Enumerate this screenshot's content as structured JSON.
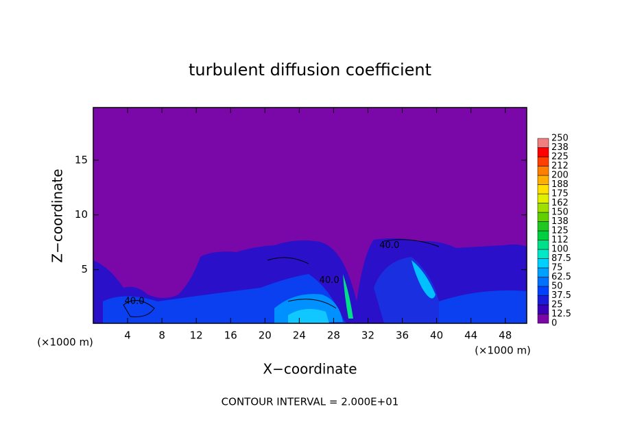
{
  "chart_data": {
    "type": "contour",
    "title": "turbulent diffusion coefficient",
    "x_label": "X−coordinate",
    "y_label": "Z−coordinate",
    "x_unit": "(×1000 m)",
    "y_unit": "(×1000 m)",
    "xlim": [
      0,
      50.5
    ],
    "ylim": [
      0.1,
      19.8
    ],
    "xticks": [
      4,
      8,
      12,
      16,
      20,
      24,
      28,
      32,
      36,
      40,
      44,
      48
    ],
    "yticks": [
      5,
      10,
      15
    ],
    "colorbar": {
      "levels": [
        0,
        12.5,
        25,
        37.5,
        50,
        62.5,
        75,
        87.5,
        100,
        {
          "value": 112.5,
          "label": "112"
        },
        125,
        {
          "value": 137.5,
          "label": "138"
        },
        150,
        {
          "value": 162.5,
          "label": "162"
        },
        175,
        {
          "value": 187.5,
          "label": "188"
        },
        200,
        {
          "value": 212.5,
          "label": "212"
        },
        225,
        {
          "value": 237.5,
          "label": "238"
        },
        250
      ],
      "colors": [
        "#7a08a8",
        "#3a00b8",
        "#1a1ad8",
        "#0040ff",
        "#0070ff",
        "#00a0ff",
        "#00d0ff",
        "#00e8c8",
        "#00e088",
        "#00d040",
        "#20c820",
        "#60d000",
        "#a0e000",
        "#e0f000",
        "#ffe000",
        "#ffb000",
        "#ff8000",
        "#ff4000",
        "#ff0000",
        "#f08080"
      ]
    },
    "contour_labels": [
      {
        "text": "40.0",
        "x": 4.8,
        "y": 2.1
      },
      {
        "text": "40.0",
        "x": 34.5,
        "y": 7.2
      },
      {
        "text": "40.0",
        "x": 27.5,
        "y": 4.0
      }
    ],
    "footnote": "CONTOUR INTERVAL = 2.000E+01"
  }
}
